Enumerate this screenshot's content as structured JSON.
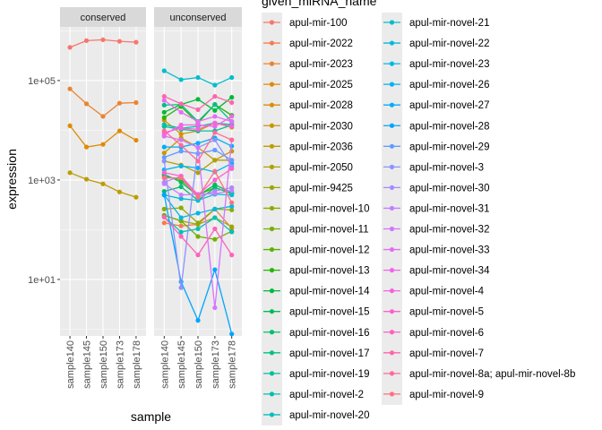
{
  "chart_data": {
    "type": "line",
    "xlabel": "sample",
    "ylabel": "expression",
    "y_scale": "log10",
    "ylim": [
      0.73,
      1200000
    ],
    "y_ticks": [
      {
        "value": 100000,
        "label": "1e+05"
      },
      {
        "value": 1000,
        "label": "1e+03"
      },
      {
        "value": 10,
        "label": "1e+01"
      }
    ],
    "categories": [
      "sample140",
      "sample145",
      "sample150",
      "sample173",
      "sample178"
    ],
    "facets": [
      "conserved",
      "unconserved"
    ],
    "grid": true,
    "legend": {
      "title": "given_miRNA_name",
      "placement": "right",
      "columns": 2
    },
    "palette": "ggplot-hue",
    "series": [
      {
        "name": "apul-mir-100",
        "panel": "conserved",
        "values": [
          464000,
          635000,
          660000,
          615000,
          590000
        ]
      },
      {
        "name": "apul-mir-2022",
        "panel": "unconserved",
        "values": [
          137,
          119,
          128,
          260,
          107
        ]
      },
      {
        "name": "apul-mir-2023",
        "panel": "conserved",
        "values": [
          68000,
          34000,
          19000,
          35000,
          36000
        ]
      },
      {
        "name": "apul-mir-2025",
        "panel": "conserved",
        "values": [
          12300,
          4600,
          5200,
          9700,
          6300
        ]
      },
      {
        "name": "apul-mir-2028",
        "panel": "unconserved",
        "values": [
          16000,
          8400,
          9700,
          14000,
          11500
        ]
      },
      {
        "name": "apul-mir-2030",
        "panel": "unconserved",
        "values": [
          3500,
          7000,
          4500,
          2500,
          3800
        ]
      },
      {
        "name": "apul-mir-2036",
        "panel": "conserved",
        "values": [
          1400,
          1035,
          835,
          575,
          450
        ]
      },
      {
        "name": "apul-mir-2050",
        "panel": "unconserved",
        "values": [
          2400,
          2000,
          1400,
          2500,
          2500
        ]
      },
      {
        "name": "apul-mir-9425",
        "panel": "unconserved",
        "values": [
          195,
          150,
          128,
          175,
          115
        ]
      },
      {
        "name": "apul-mir-novel-10",
        "panel": "unconserved",
        "values": [
          260,
          275,
          137,
          260,
          250
        ]
      },
      {
        "name": "apul-mir-novel-11",
        "panel": "unconserved",
        "values": [
          195,
          150,
          73,
          64,
          93
        ]
      },
      {
        "name": "apul-mir-novel-12",
        "panel": "unconserved",
        "values": [
          1200,
          1000,
          500,
          700,
          550
        ]
      },
      {
        "name": "apul-mir-novel-13",
        "panel": "unconserved",
        "values": [
          18000,
          30000,
          14000,
          33000,
          20000
        ]
      },
      {
        "name": "apul-mir-novel-14",
        "panel": "unconserved",
        "values": [
          23000,
          33000,
          42000,
          25000,
          46000
        ]
      },
      {
        "name": "apul-mir-novel-15",
        "panel": "unconserved",
        "values": [
          1300,
          900,
          480,
          800,
          560
        ]
      },
      {
        "name": "apul-mir-novel-16",
        "panel": "unconserved",
        "values": [
          590,
          730,
          390,
          700,
          530
        ]
      },
      {
        "name": "apul-mir-novel-17",
        "panel": "unconserved",
        "values": [
          32000,
          33000,
          15000,
          33000,
          15000
        ]
      },
      {
        "name": "apul-mir-novel-19",
        "panel": "unconserved",
        "values": [
          11900,
          10400,
          9700,
          9700,
          12800
        ]
      },
      {
        "name": "apul-mir-novel-2",
        "panel": "unconserved",
        "values": [
          13000,
          11000,
          12000,
          14000,
          13000
        ]
      },
      {
        "name": "apul-mir-novel-20",
        "panel": "unconserved",
        "values": [
          180,
          90,
          104,
          175,
          90
        ]
      },
      {
        "name": "apul-mir-novel-21",
        "panel": "unconserved",
        "values": [
          157000,
          104000,
          115000,
          81000,
          115000
        ]
      },
      {
        "name": "apul-mir-novel-22",
        "panel": "unconserved",
        "values": [
          500,
          420,
          390,
          515,
          500
        ]
      },
      {
        "name": "apul-mir-novel-23",
        "panel": "unconserved",
        "values": [
          500,
          175,
          215,
          260,
          295
        ]
      },
      {
        "name": "apul-mir-novel-26",
        "panel": "unconserved",
        "values": [
          1600,
          1900,
          1750,
          1450,
          2150
        ]
      },
      {
        "name": "apul-mir-novel-27",
        "panel": "unconserved",
        "values": [
          4600,
          4600,
          5500,
          7000,
          4800
        ]
      },
      {
        "name": "apul-mir-novel-28",
        "panel": "unconserved",
        "values": [
          500,
          9,
          1.5,
          15.7,
          0.8
        ]
      },
      {
        "name": "apul-mir-novel-29",
        "panel": "unconserved",
        "values": [
          2850,
          3800,
          3400,
          4000,
          2500
        ]
      },
      {
        "name": "apul-mir-novel-3",
        "panel": "unconserved",
        "values": [
          2400,
          6.8,
          4500,
          6400,
          1900
        ]
      },
      {
        "name": "apul-mir-novel-30",
        "panel": "unconserved",
        "values": [
          900,
          1200,
          450,
          600,
          700
        ]
      },
      {
        "name": "apul-mir-novel-31",
        "panel": "unconserved",
        "values": [
          840,
          500,
          515,
          530,
          610
        ]
      },
      {
        "name": "apul-mir-novel-32",
        "panel": "unconserved",
        "values": [
          7600,
          6400,
          4500,
          2.7,
          6400
        ]
      },
      {
        "name": "apul-mir-novel-33",
        "panel": "unconserved",
        "values": [
          40000,
          23000,
          15000,
          19000,
          15000
        ]
      },
      {
        "name": "apul-mir-novel-34",
        "panel": "unconserved",
        "values": [
          8100,
          12800,
          12800,
          11900,
          19000
        ]
      },
      {
        "name": "apul-mir-novel-4",
        "panel": "unconserved",
        "values": [
          9000,
          11000,
          10500,
          14000,
          12000
        ]
      },
      {
        "name": "apul-mir-novel-5",
        "panel": "unconserved",
        "values": [
          1400,
          1200,
          500,
          1000,
          1690
        ]
      },
      {
        "name": "apul-mir-novel-6",
        "panel": "unconserved",
        "values": [
          180,
          73,
          31,
          104,
          31
        ]
      },
      {
        "name": "apul-mir-novel-7",
        "panel": "unconserved",
        "values": [
          48000,
          34000,
          26000,
          48000,
          36000
        ]
      },
      {
        "name": "apul-mir-novel-8a; apul-mir-novel-8b",
        "panel": "unconserved",
        "values": [
          9700,
          5000,
          2400,
          9000,
          6400
        ]
      },
      {
        "name": "apul-mir-novel-9",
        "panel": "unconserved",
        "values": [
          1100,
          1100,
          450,
          1500,
          350
        ]
      }
    ]
  }
}
